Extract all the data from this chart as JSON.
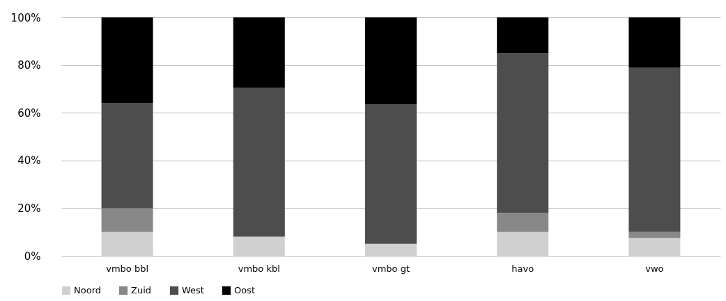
{
  "chart_data": {
    "type": "bar",
    "stacked": true,
    "categories": [
      "vmbo bbl",
      "vmbo kbl",
      "vmbo gt",
      "havo",
      "vwo"
    ],
    "series": [
      {
        "name": "Noord",
        "color": "#d0d0d0",
        "values": [
          10,
          8,
          5,
          10,
          7.5
        ]
      },
      {
        "name": "Zuid",
        "color": "#888888",
        "values": [
          10,
          0,
          0,
          8,
          2.5
        ]
      },
      {
        "name": "West",
        "color": "#4d4d4d",
        "values": [
          44,
          62.5,
          58.5,
          67,
          69
        ]
      },
      {
        "name": "Oost",
        "color": "#000000",
        "values": [
          36,
          29.5,
          36.5,
          15,
          21
        ]
      }
    ],
    "ylim": [
      0,
      100
    ],
    "yticks": [
      {
        "value": 0,
        "label": "0%"
      },
      {
        "value": 20,
        "label": "20%"
      },
      {
        "value": 40,
        "label": "40%"
      },
      {
        "value": 60,
        "label": "60%"
      },
      {
        "value": 80,
        "label": "80%"
      },
      {
        "value": 100,
        "label": "100%"
      }
    ],
    "grid": "y",
    "legend": "bottom"
  }
}
